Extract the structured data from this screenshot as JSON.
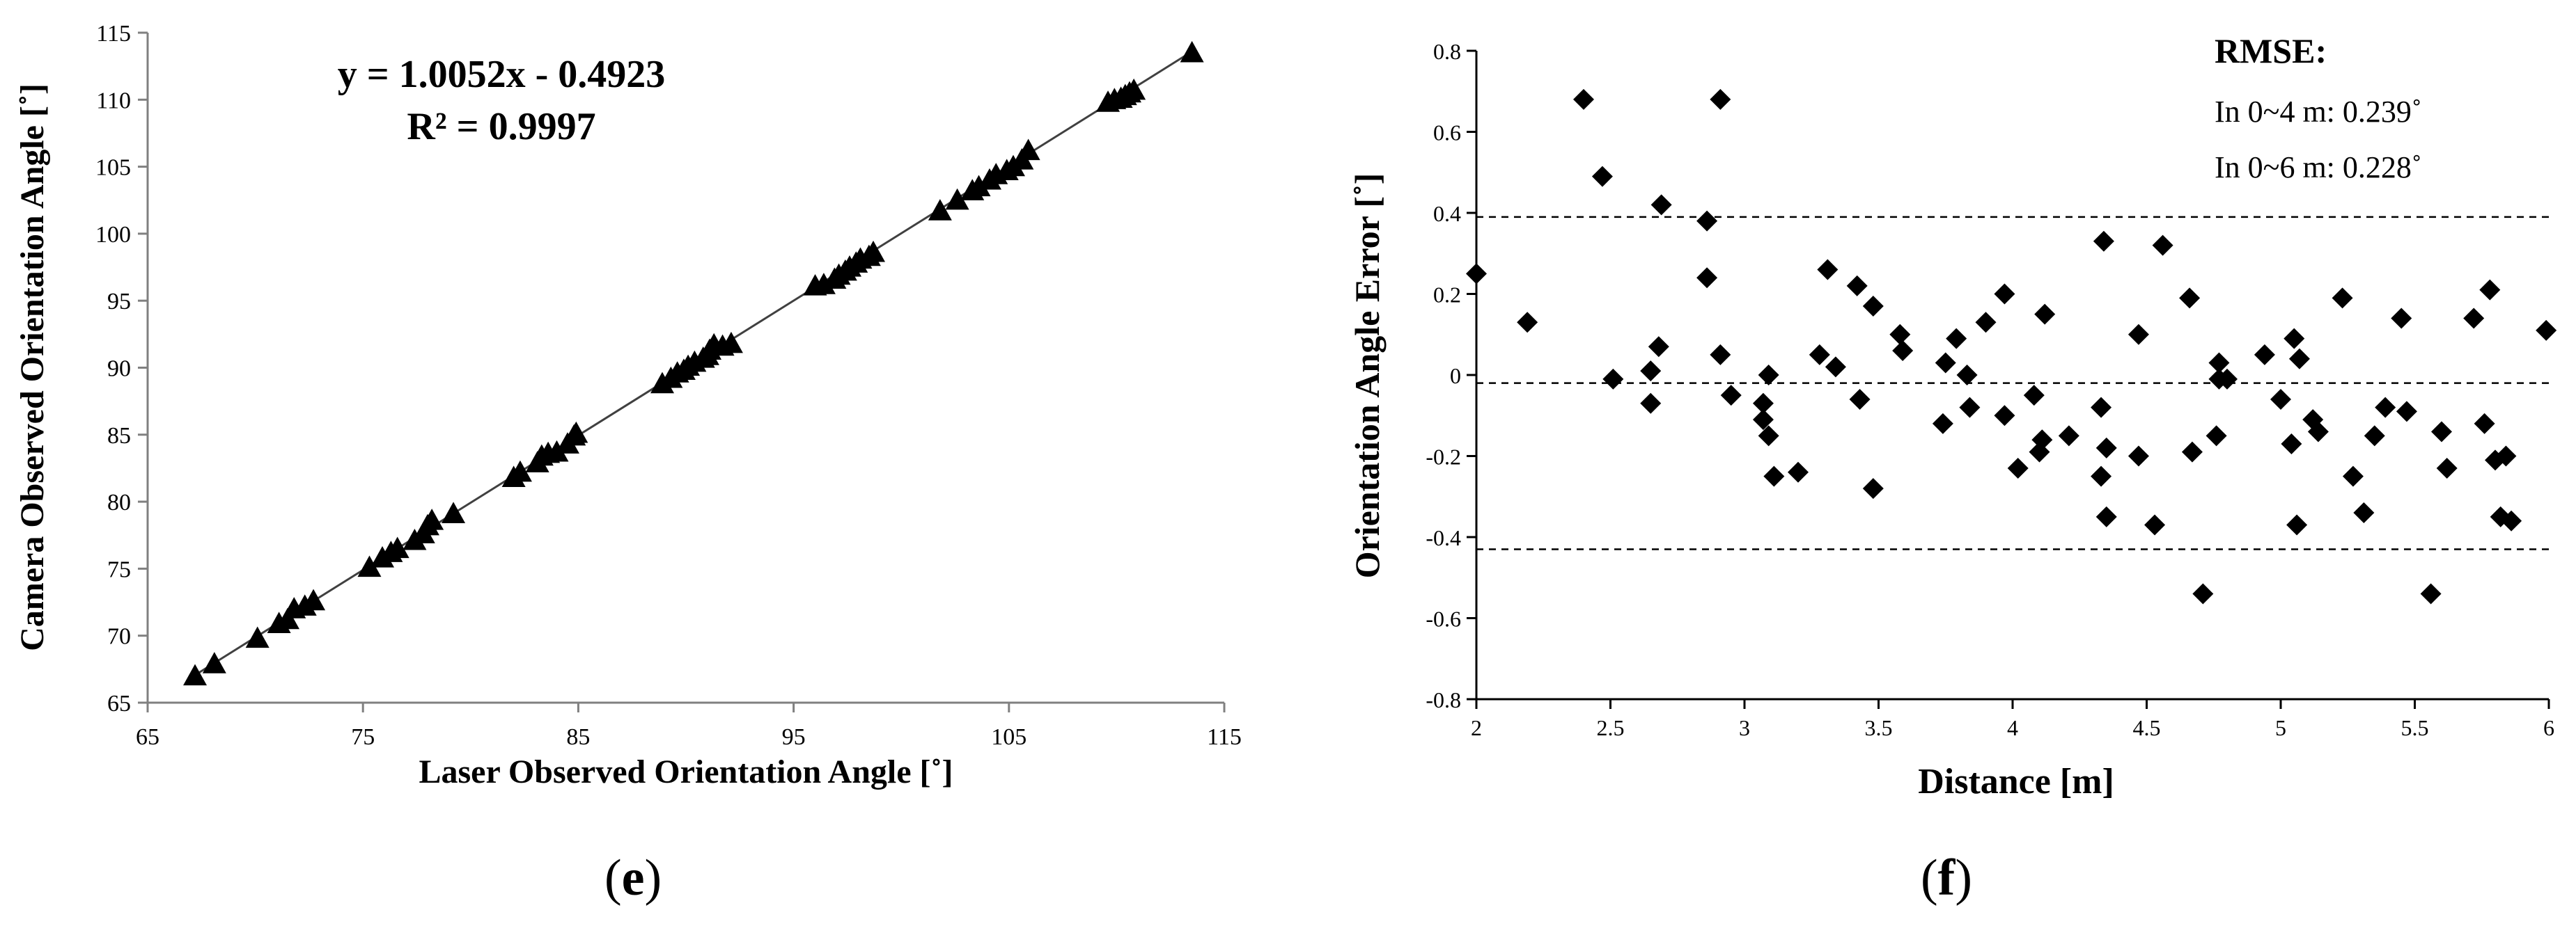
{
  "chart_data": [
    {
      "type": "scatter",
      "panel": "e",
      "xlabel": "Laser Observed Orientation Angle [˚]",
      "ylabel": "Camera Observed Orientation Angle [˚]",
      "xlim": [
        65,
        115
      ],
      "ylim": [
        65,
        115
      ],
      "xticks": [
        65,
        75,
        85,
        95,
        105,
        115
      ],
      "yticks": [
        65,
        70,
        75,
        80,
        85,
        90,
        95,
        100,
        105,
        110,
        115
      ],
      "annotations": [
        "y = 1.0052x - 0.4923",
        "R² = 0.9997"
      ],
      "trendline": {
        "slope": 1.0052,
        "intercept": -0.4923,
        "x_range": [
          67.2,
          113.5
        ]
      },
      "marker": "triangle",
      "grid": false,
      "points": [
        [
          67.2,
          67.0
        ],
        [
          68.1,
          67.9
        ],
        [
          70.1,
          69.8
        ],
        [
          71.1,
          70.9
        ],
        [
          71.5,
          71.2
        ],
        [
          71.8,
          72.0
        ],
        [
          72.3,
          72.2
        ],
        [
          72.7,
          72.6
        ],
        [
          75.3,
          75.1
        ],
        [
          75.9,
          75.8
        ],
        [
          76.3,
          76.2
        ],
        [
          76.6,
          76.5
        ],
        [
          77.4,
          77.1
        ],
        [
          77.8,
          77.6
        ],
        [
          78.0,
          78.2
        ],
        [
          78.2,
          78.6
        ],
        [
          79.2,
          79.1
        ],
        [
          82.0,
          81.8
        ],
        [
          82.3,
          82.2
        ],
        [
          83.1,
          82.9
        ],
        [
          83.3,
          83.4
        ],
        [
          83.6,
          83.6
        ],
        [
          84.0,
          83.7
        ],
        [
          84.5,
          84.3
        ],
        [
          84.8,
          84.9
        ],
        [
          84.9,
          85.1
        ],
        [
          88.9,
          88.8
        ],
        [
          89.3,
          89.2
        ],
        [
          89.6,
          89.6
        ],
        [
          89.9,
          89.8
        ],
        [
          90.1,
          90.1
        ],
        [
          90.4,
          90.4
        ],
        [
          90.8,
          90.7
        ],
        [
          91.0,
          90.9
        ],
        [
          91.1,
          91.3
        ],
        [
          91.3,
          91.7
        ],
        [
          91.7,
          91.6
        ],
        [
          92.1,
          91.8
        ],
        [
          96.0,
          96.1
        ],
        [
          96.4,
          96.2
        ],
        [
          96.9,
          96.6
        ],
        [
          97.1,
          96.9
        ],
        [
          97.4,
          97.2
        ],
        [
          97.6,
          97.5
        ],
        [
          97.9,
          97.8
        ],
        [
          98.1,
          98.1
        ],
        [
          98.5,
          98.3
        ],
        [
          98.7,
          98.6
        ],
        [
          101.8,
          101.7
        ],
        [
          102.6,
          102.5
        ],
        [
          103.3,
          103.2
        ],
        [
          103.6,
          103.5
        ],
        [
          104.1,
          104.0
        ],
        [
          104.4,
          104.4
        ],
        [
          104.9,
          104.7
        ],
        [
          105.2,
          105.0
        ],
        [
          105.6,
          105.5
        ],
        [
          105.9,
          106.2
        ],
        [
          109.6,
          109.8
        ],
        [
          109.9,
          110.0
        ],
        [
          110.2,
          110.1
        ],
        [
          110.4,
          110.3
        ],
        [
          110.6,
          110.5
        ],
        [
          110.8,
          110.7
        ],
        [
          113.5,
          113.5
        ]
      ]
    },
    {
      "type": "scatter",
      "panel": "f",
      "xlabel": "Distance [m]",
      "ylabel": "Orientation Angle Error [˚]",
      "xlim": [
        2,
        6
      ],
      "ylim": [
        -0.8,
        0.8
      ],
      "xticks": [
        "2",
        "2.5",
        "3",
        "3.5",
        "4",
        "4.5",
        "5",
        "5.5",
        "6"
      ],
      "yticks": [
        "-0.8",
        "-0.6",
        "-0.4",
        "-0.2",
        "0",
        "0.2",
        "0.4",
        "0.6",
        "0.8"
      ],
      "reference_lines": [
        0.39,
        -0.02,
        -0.43
      ],
      "annotations": [
        "RMSE:",
        "In 0~4 m: 0.239˚",
        "In 0~6 m: 0.228˚"
      ],
      "marker": "diamond",
      "grid": false,
      "points": [
        [
          2.0,
          0.25
        ],
        [
          2.19,
          0.13
        ],
        [
          2.4,
          0.68
        ],
        [
          2.47,
          0.49
        ],
        [
          2.51,
          -0.01
        ],
        [
          2.65,
          -0.07
        ],
        [
          2.65,
          0.01
        ],
        [
          2.68,
          0.07
        ],
        [
          2.69,
          0.42
        ],
        [
          2.86,
          0.38
        ],
        [
          2.86,
          0.24
        ],
        [
          2.91,
          0.68
        ],
        [
          2.91,
          0.05
        ],
        [
          2.95,
          -0.05
        ],
        [
          3.07,
          -0.07
        ],
        [
          3.07,
          -0.11
        ],
        [
          3.09,
          0.0
        ],
        [
          3.09,
          -0.15
        ],
        [
          3.11,
          -0.25
        ],
        [
          3.2,
          -0.24
        ],
        [
          3.28,
          0.05
        ],
        [
          3.31,
          0.26
        ],
        [
          3.34,
          0.02
        ],
        [
          3.42,
          0.22
        ],
        [
          3.43,
          -0.06
        ],
        [
          3.48,
          0.17
        ],
        [
          3.48,
          -0.28
        ],
        [
          3.58,
          0.1
        ],
        [
          3.59,
          0.06
        ],
        [
          3.74,
          -0.12
        ],
        [
          3.75,
          0.03
        ],
        [
          3.79,
          0.09
        ],
        [
          3.83,
          0.0
        ],
        [
          3.84,
          -0.08
        ],
        [
          3.9,
          0.13
        ],
        [
          3.97,
          -0.1
        ],
        [
          3.97,
          0.2
        ],
        [
          4.02,
          -0.23
        ],
        [
          4.08,
          -0.05
        ],
        [
          4.1,
          -0.19
        ],
        [
          4.11,
          -0.16
        ],
        [
          4.12,
          0.15
        ],
        [
          4.21,
          -0.15
        ],
        [
          4.33,
          -0.08
        ],
        [
          4.33,
          -0.25
        ],
        [
          4.34,
          0.33
        ],
        [
          4.35,
          -0.18
        ],
        [
          4.35,
          -0.35
        ],
        [
          4.47,
          -0.2
        ],
        [
          4.47,
          0.1
        ],
        [
          4.53,
          -0.37
        ],
        [
          4.56,
          0.32
        ],
        [
          4.66,
          0.19
        ],
        [
          4.67,
          -0.19
        ],
        [
          4.71,
          -0.54
        ],
        [
          4.76,
          -0.15
        ],
        [
          4.77,
          0.03
        ],
        [
          4.77,
          -0.01
        ],
        [
          4.8,
          -0.01
        ],
        [
          4.94,
          0.05
        ],
        [
          5.0,
          -0.06
        ],
        [
          5.04,
          -0.17
        ],
        [
          5.05,
          0.09
        ],
        [
          5.06,
          -0.37
        ],
        [
          5.07,
          0.04
        ],
        [
          5.12,
          -0.11
        ],
        [
          5.14,
          -0.14
        ],
        [
          5.23,
          0.19
        ],
        [
          5.27,
          -0.25
        ],
        [
          5.31,
          -0.34
        ],
        [
          5.35,
          -0.15
        ],
        [
          5.39,
          -0.08
        ],
        [
          5.45,
          0.14
        ],
        [
          5.47,
          -0.09
        ],
        [
          5.56,
          -0.54
        ],
        [
          5.6,
          -0.14
        ],
        [
          5.62,
          -0.23
        ],
        [
          5.72,
          0.14
        ],
        [
          5.76,
          -0.12
        ],
        [
          5.78,
          0.21
        ],
        [
          5.8,
          -0.21
        ],
        [
          5.82,
          -0.35
        ],
        [
          5.84,
          -0.2
        ],
        [
          5.86,
          -0.36
        ],
        [
          5.99,
          0.11
        ]
      ]
    }
  ],
  "panel_labels": [
    "(e)",
    "(f)"
  ]
}
